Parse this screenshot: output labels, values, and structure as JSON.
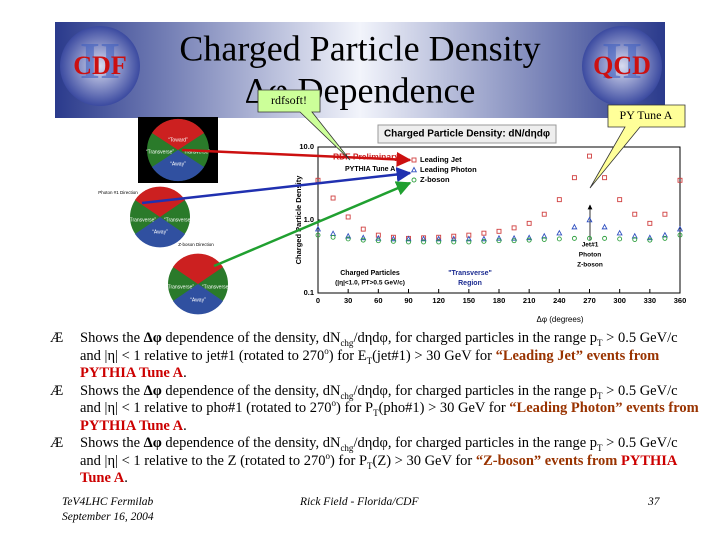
{
  "header": {
    "title_line1": "Charged Particle Density",
    "title_line2": "Δφ Dependence",
    "logo_left": "CDF",
    "logo_right": "QCD",
    "logo_mark": "II",
    "callout_left": "rdfsoft!",
    "callout_right": "PY Tune A"
  },
  "diagrams": {
    "regions": [
      "“Toward”",
      "“Transverse”",
      "“Away”"
    ],
    "photon_label": "Photon #1 Direction",
    "zboson_label": "Z-boson Direction"
  },
  "plot": {
    "title": "Charged Particle Density: dN/dηdφ",
    "ylabel": "Charged Particle Density",
    "xlabel": "Δφ (degrees)",
    "preliminary": "RDF Preliminary",
    "generator": "PYTHIA Tune A",
    "note_particles": "Charged Particles",
    "note_cuts": "(|η|<1.0, PT>0.5 GeV/c)",
    "note_transverse": "\"Transverse\"",
    "note_region": "Region",
    "note_objects": [
      "Jet#1",
      "Photon",
      "Z-boson"
    ],
    "log_y": true,
    "xlim": [
      0,
      360
    ],
    "ylim": [
      0.1,
      10
    ],
    "xticks": [
      0,
      30,
      60,
      90,
      120,
      150,
      180,
      210,
      240,
      270,
      300,
      330,
      360
    ],
    "yticks": [
      {
        "value": 10,
        "label": "10.0"
      },
      {
        "value": 1,
        "label": "1.0"
      },
      0.1
    ],
    "x": [
      0,
      15,
      30,
      45,
      60,
      75,
      90,
      105,
      120,
      135,
      150,
      165,
      180,
      195,
      210,
      225,
      240,
      255,
      270,
      285,
      300,
      315,
      330,
      345,
      360
    ],
    "series": [
      {
        "name": "Leading Jet",
        "color": "#d04040",
        "marker": "square",
        "values": [
          3.5,
          2.0,
          1.1,
          0.75,
          0.62,
          0.58,
          0.56,
          0.57,
          0.58,
          0.6,
          0.62,
          0.66,
          0.7,
          0.78,
          0.9,
          1.2,
          1.9,
          3.8,
          7.5,
          3.8,
          1.9,
          1.2,
          0.9,
          1.2,
          3.5
        ]
      },
      {
        "name": "Leading Photon",
        "color": "#3050c0",
        "marker": "triangle",
        "values": [
          0.75,
          0.65,
          0.6,
          0.57,
          0.56,
          0.55,
          0.55,
          0.55,
          0.55,
          0.55,
          0.55,
          0.55,
          0.56,
          0.56,
          0.57,
          0.6,
          0.66,
          0.8,
          1.0,
          0.8,
          0.66,
          0.6,
          0.57,
          0.62,
          0.75
        ]
      },
      {
        "name": "Z-boson",
        "color": "#30a040",
        "marker": "circle",
        "values": [
          0.62,
          0.58,
          0.55,
          0.53,
          0.52,
          0.51,
          0.5,
          0.5,
          0.5,
          0.5,
          0.5,
          0.51,
          0.52,
          0.52,
          0.53,
          0.54,
          0.55,
          0.56,
          0.56,
          0.56,
          0.55,
          0.54,
          0.53,
          0.56,
          0.62
        ]
      }
    ]
  },
  "bullet_symbol": "Æ",
  "bullets": [
    [
      "Shows the ",
      "Δφ",
      " dependence of the density, dN",
      "chg",
      "/dηdφ, for charged particles in the range p",
      "T",
      " > 0.5 GeV/c and |η| < 1 relative to jet#1 (rotated to 270",
      "o",
      ") for E",
      "T",
      "(jet#1) > 30 GeV for ",
      "“Leading Jet” events",
      " from ",
      "PYTHIA Tune A",
      "."
    ],
    [
      "Shows the ",
      "Δφ",
      " dependence of the density, dN",
      "chg",
      "/dηdφ, for charged particles in the range p",
      "T",
      " > 0.5 GeV/c and |η| < 1 relative to pho#1 (rotated to 270",
      "o",
      ") for P",
      "T",
      "(pho#1) > 30 GeV for ",
      "“Leading Photon” events",
      " from ",
      "PYTHIA Tune A",
      "."
    ],
    [
      "Shows the ",
      "Δφ",
      " dependence of the density, dN",
      "chg",
      "/dηdφ, for charged particles in the range p",
      "T",
      " > 0.5 GeV/c and |η| < 1 relative to the Z (rotated to 270",
      "o",
      ") for P",
      "T",
      "(Z) > 30 GeV for ",
      "“Z-boson” events",
      " from ",
      "PYTHIA Tune A",
      "."
    ]
  ],
  "footer": {
    "left_line1": "TeV4LHC Fermilab",
    "left_line2": "September 16, 2004",
    "center": "Rick Field - Florida/CDF",
    "page": "37"
  }
}
